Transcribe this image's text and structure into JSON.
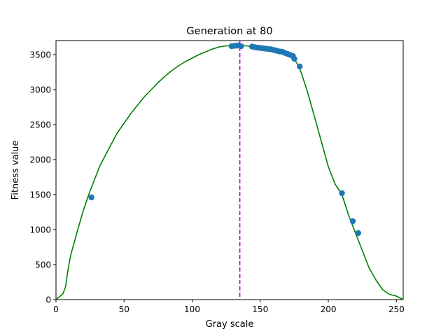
{
  "chart_data": {
    "type": "line",
    "title": "Generation at 80",
    "xlabel": "Gray scale",
    "ylabel": "Fitness value",
    "xlim": [
      0,
      255
    ],
    "ylim": [
      0,
      3700
    ],
    "xticks": [
      0,
      50,
      100,
      150,
      200,
      250
    ],
    "yticks": [
      0,
      500,
      1000,
      1500,
      2000,
      2500,
      3000,
      3500
    ],
    "grid": false,
    "colors": {
      "curve": "#008000",
      "population": "#1f77b4",
      "best_line": "#bf00bf"
    },
    "series": [
      {
        "kind": "line",
        "x": [
          0,
          5,
          7,
          9,
          11,
          13,
          16,
          20,
          24,
          28,
          32,
          36,
          40,
          45,
          50,
          55,
          60,
          65,
          70,
          75,
          80,
          85,
          90,
          95,
          100,
          105,
          110,
          115,
          120,
          125,
          130,
          135,
          140,
          145,
          150,
          155,
          160,
          165,
          170,
          172,
          175,
          178,
          180,
          185,
          190,
          195,
          200,
          205,
          210,
          215,
          220,
          225,
          230,
          235,
          240,
          245,
          250,
          254,
          255
        ],
        "y": [
          0,
          80,
          180,
          450,
          650,
          790,
          1000,
          1270,
          1500,
          1700,
          1900,
          2050,
          2200,
          2380,
          2520,
          2660,
          2780,
          2900,
          3000,
          3100,
          3190,
          3270,
          3340,
          3400,
          3450,
          3500,
          3540,
          3580,
          3610,
          3625,
          3630,
          3630,
          3625,
          3610,
          3590,
          3575,
          3560,
          3540,
          3500,
          3480,
          3440,
          3340,
          3250,
          2950,
          2600,
          2250,
          1900,
          1650,
          1500,
          1200,
          950,
          700,
          450,
          280,
          140,
          75,
          50,
          10,
          0
        ]
      },
      {
        "kind": "scatter",
        "x": [
          26,
          129,
          131,
          133,
          134,
          136,
          144,
          146,
          148,
          150,
          152,
          154,
          156,
          158,
          160,
          162,
          164,
          166,
          168,
          170,
          172,
          174,
          175,
          179,
          210,
          218,
          222
        ],
        "y": [
          1460,
          3620,
          3625,
          3628,
          3630,
          3620,
          3615,
          3605,
          3600,
          3595,
          3590,
          3585,
          3580,
          3575,
          3565,
          3555,
          3545,
          3540,
          3525,
          3510,
          3495,
          3480,
          3440,
          3330,
          1520,
          1120,
          950
        ]
      }
    ],
    "best_x": 135
  }
}
